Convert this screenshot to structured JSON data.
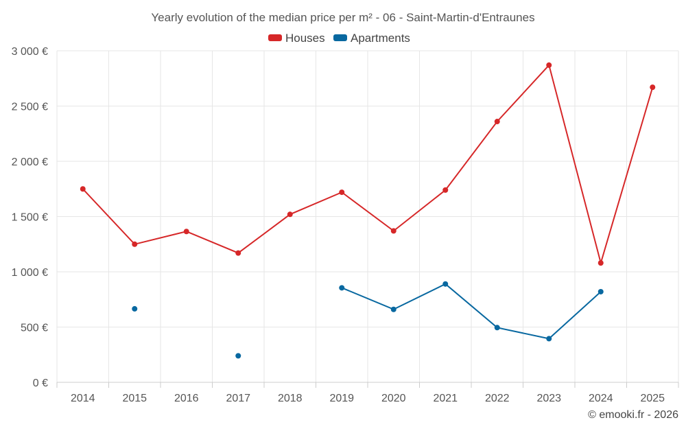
{
  "chart_data": {
    "type": "line",
    "title": "Yearly evolution of the median price per m² - 06 - Saint-Martin-d'Entraunes",
    "categories": [
      "2014",
      "2015",
      "2016",
      "2017",
      "2018",
      "2019",
      "2020",
      "2021",
      "2022",
      "2023",
      "2024",
      "2025"
    ],
    "series": [
      {
        "name": "Houses",
        "color": "#d62728",
        "values": [
          1750,
          1250,
          1365,
          1170,
          1520,
          1720,
          1370,
          1740,
          2360,
          2870,
          1080,
          2670
        ]
      },
      {
        "name": "Apartments",
        "color": "#0868a0",
        "values": [
          null,
          665,
          null,
          240,
          null,
          855,
          660,
          890,
          495,
          395,
          820,
          null
        ]
      }
    ],
    "ylim": [
      0,
      3000
    ],
    "yticks": [
      0,
      500,
      1000,
      1500,
      2000,
      2500,
      3000
    ],
    "ytick_labels": [
      "0 €",
      "500 €",
      "1 000 €",
      "1 500 €",
      "2 000 €",
      "2 500 €",
      "3 000 €"
    ],
    "xlabel": "",
    "ylabel": "",
    "grid": true,
    "legend_position": "top-center"
  },
  "credit": "© emooki.fr - 2026"
}
